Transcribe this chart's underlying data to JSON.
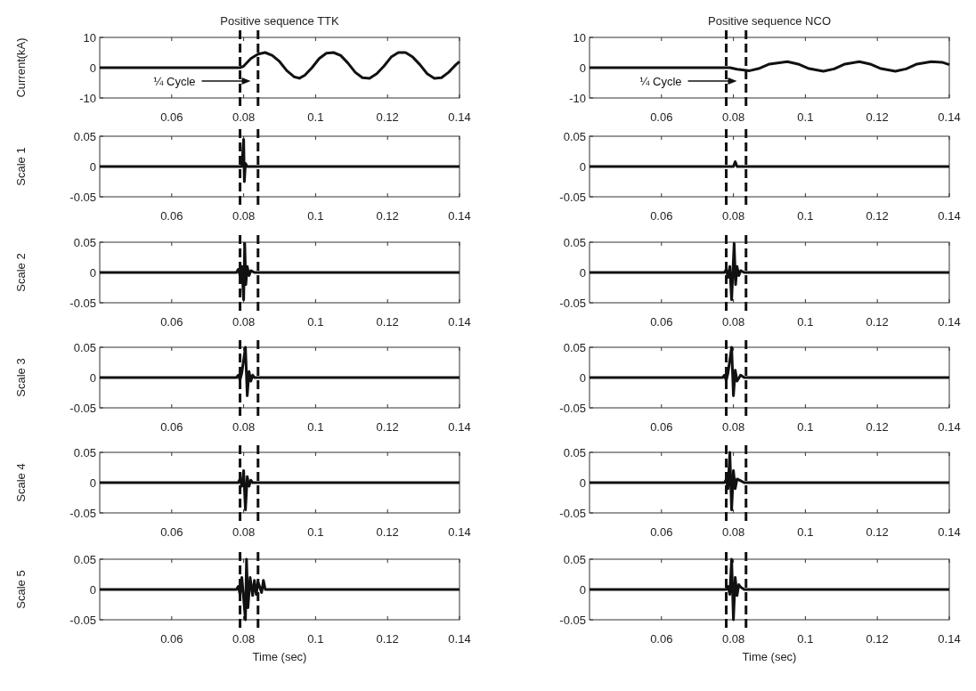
{
  "chart_data": [
    {
      "type": "line",
      "title": "Positive sequence TTK",
      "ylabel": "Current(kA)",
      "xlim": [
        0.04,
        0.14
      ],
      "ylim": [
        -10,
        10
      ],
      "xticks": [
        0.06,
        0.08,
        0.1,
        0.12,
        0.14
      ],
      "yticks": [
        -10,
        0,
        10
      ],
      "ref_lines": [
        {
          "axis": "x",
          "value": 0.079,
          "line_style": "dashed"
        },
        {
          "axis": "x",
          "value": 0.084,
          "line_style": "dashed"
        }
      ],
      "annotations": [
        "¼ Cycle"
      ],
      "series": [
        {
          "color": "#111111",
          "x": [
            0.04,
            0.079,
            0.08,
            0.082,
            0.084,
            0.086,
            0.088,
            0.09,
            0.092,
            0.094,
            0.0955,
            0.097,
            0.099,
            0.101,
            0.103,
            0.105,
            0.107,
            0.109,
            0.111,
            0.113,
            0.115,
            0.117,
            0.119,
            0.121,
            0.123,
            0.125,
            0.127,
            0.129,
            0.131,
            0.133,
            0.135,
            0.137,
            0.139,
            0.14
          ],
          "values": [
            0,
            0,
            0.5,
            3,
            4.5,
            5,
            4,
            2,
            -1,
            -3,
            -3.5,
            -2.5,
            0,
            3,
            4.8,
            5,
            4,
            1.5,
            -1.5,
            -3.3,
            -3.5,
            -2,
            0.5,
            3.5,
            5,
            5,
            3.5,
            1,
            -2,
            -3.5,
            -3.3,
            -1.5,
            1,
            2
          ]
        }
      ]
    },
    {
      "type": "line",
      "title": "Positive sequence NCO",
      "xlim": [
        0.04,
        0.14
      ],
      "ylim": [
        -10,
        10
      ],
      "xticks": [
        0.06,
        0.08,
        0.1,
        0.12,
        0.14
      ],
      "yticks": [
        -10,
        0,
        10
      ],
      "ref_lines": [
        {
          "axis": "x",
          "value": 0.078,
          "line_style": "dashed"
        },
        {
          "axis": "x",
          "value": 0.0835,
          "line_style": "dashed"
        }
      ],
      "annotations": [
        "¼ Cycle"
      ],
      "series": [
        {
          "color": "#111111",
          "x": [
            0.04,
            0.079,
            0.081,
            0.0845,
            0.087,
            0.09,
            0.095,
            0.098,
            0.101,
            0.105,
            0.108,
            0.111,
            0.115,
            0.118,
            0.121,
            0.125,
            0.128,
            0.131,
            0.135,
            0.138,
            0.14
          ],
          "values": [
            0,
            0,
            -0.5,
            -1,
            -0.3,
            1.2,
            2,
            1.2,
            -0.3,
            -1.2,
            -0.4,
            1.2,
            2,
            1.2,
            -0.3,
            -1.2,
            -0.4,
            1.2,
            2,
            1.8,
            1
          ]
        }
      ]
    },
    {
      "type": "line",
      "ylabel": "Scale 1",
      "xlim": [
        0.04,
        0.14
      ],
      "ylim": [
        -0.05,
        0.05
      ],
      "xticks": [
        0.06,
        0.08,
        0.1,
        0.12,
        0.14
      ],
      "yticks": [
        -0.05,
        0,
        0.05
      ],
      "ref_lines": [
        {
          "axis": "x",
          "value": 0.079,
          "line_style": "dashed"
        },
        {
          "axis": "x",
          "value": 0.084,
          "line_style": "dashed"
        }
      ],
      "series": [
        {
          "color": "#111111",
          "x": [
            0.04,
            0.0795,
            0.08,
            0.0802,
            0.0805,
            0.081,
            0.14
          ],
          "values": [
            0,
            0,
            0.045,
            -0.025,
            0.005,
            0,
            0
          ]
        }
      ]
    },
    {
      "type": "line",
      "xlim": [
        0.04,
        0.14
      ],
      "ylim": [
        -0.05,
        0.05
      ],
      "xticks": [
        0.06,
        0.08,
        0.1,
        0.12,
        0.14
      ],
      "yticks": [
        -0.05,
        0,
        0.05
      ],
      "ref_lines": [
        {
          "axis": "x",
          "value": 0.078,
          "line_style": "dashed"
        },
        {
          "axis": "x",
          "value": 0.0835,
          "line_style": "dashed"
        }
      ],
      "series": [
        {
          "color": "#111111",
          "x": [
            0.04,
            0.08,
            0.0805,
            0.081,
            0.14
          ],
          "values": [
            0,
            0,
            0.008,
            0,
            0
          ]
        }
      ]
    },
    {
      "type": "line",
      "ylabel": "Scale 2",
      "xlim": [
        0.04,
        0.14
      ],
      "ylim": [
        -0.05,
        0.05
      ],
      "xticks": [
        0.06,
        0.08,
        0.1,
        0.12,
        0.14
      ],
      "yticks": [
        -0.05,
        0,
        0.05
      ],
      "ref_lines": [
        {
          "axis": "x",
          "value": 0.079,
          "line_style": "dashed"
        },
        {
          "axis": "x",
          "value": 0.084,
          "line_style": "dashed"
        }
      ],
      "series": [
        {
          "color": "#111111",
          "x": [
            0.04,
            0.078,
            0.0785,
            0.079,
            0.0795,
            0.08,
            0.0803,
            0.0806,
            0.081,
            0.0815,
            0.082,
            0.083,
            0.14
          ],
          "values": [
            0,
            0,
            0.005,
            -0.005,
            0.01,
            -0.045,
            0.048,
            -0.02,
            0.01,
            -0.005,
            0.003,
            0,
            0
          ]
        }
      ]
    },
    {
      "type": "line",
      "xlim": [
        0.04,
        0.14
      ],
      "ylim": [
        -0.05,
        0.05
      ],
      "xticks": [
        0.06,
        0.08,
        0.1,
        0.12,
        0.14
      ],
      "yticks": [
        -0.05,
        0,
        0.05
      ],
      "ref_lines": [
        {
          "axis": "x",
          "value": 0.078,
          "line_style": "dashed"
        },
        {
          "axis": "x",
          "value": 0.0835,
          "line_style": "dashed"
        }
      ],
      "series": [
        {
          "color": "#111111",
          "x": [
            0.04,
            0.0775,
            0.078,
            0.0785,
            0.079,
            0.0795,
            0.0802,
            0.0806,
            0.081,
            0.0815,
            0.082,
            0.083,
            0.14
          ],
          "values": [
            0,
            0,
            0.005,
            -0.008,
            0.01,
            -0.045,
            0.048,
            -0.02,
            0.01,
            -0.005,
            0.003,
            0,
            0
          ]
        }
      ]
    },
    {
      "type": "line",
      "ylabel": "Scale 3",
      "xlim": [
        0.04,
        0.14
      ],
      "ylim": [
        -0.05,
        0.05
      ],
      "xticks": [
        0.06,
        0.08,
        0.1,
        0.12,
        0.14
      ],
      "yticks": [
        -0.05,
        0,
        0.05
      ],
      "ref_lines": [
        {
          "axis": "x",
          "value": 0.079,
          "line_style": "dashed"
        },
        {
          "axis": "x",
          "value": 0.084,
          "line_style": "dashed"
        }
      ],
      "series": [
        {
          "color": "#111111",
          "x": [
            0.04,
            0.078,
            0.0785,
            0.079,
            0.0795,
            0.0805,
            0.081,
            0.0815,
            0.082,
            0.0825,
            0.083,
            0.14
          ],
          "values": [
            0,
            0,
            0.004,
            -0.004,
            0.008,
            0.05,
            -0.03,
            0.01,
            -0.006,
            0.004,
            0,
            0
          ]
        }
      ]
    },
    {
      "type": "line",
      "xlim": [
        0.04,
        0.14
      ],
      "ylim": [
        -0.05,
        0.05
      ],
      "xticks": [
        0.06,
        0.08,
        0.1,
        0.12,
        0.14
      ],
      "yticks": [
        -0.05,
        0,
        0.05
      ],
      "ref_lines": [
        {
          "axis": "x",
          "value": 0.078,
          "line_style": "dashed"
        },
        {
          "axis": "x",
          "value": 0.0835,
          "line_style": "dashed"
        }
      ],
      "series": [
        {
          "color": "#111111",
          "x": [
            0.04,
            0.077,
            0.0775,
            0.078,
            0.0785,
            0.0795,
            0.08,
            0.0805,
            0.081,
            0.082,
            0.083,
            0.14
          ],
          "values": [
            0,
            0,
            0.004,
            -0.005,
            0.008,
            0.05,
            -0.03,
            0.012,
            -0.006,
            0.004,
            0,
            0
          ]
        }
      ]
    },
    {
      "type": "line",
      "ylabel": "Scale 4",
      "xlim": [
        0.04,
        0.14
      ],
      "ylim": [
        -0.05,
        0.05
      ],
      "xticks": [
        0.06,
        0.08,
        0.1,
        0.12,
        0.14
      ],
      "yticks": [
        -0.05,
        0,
        0.05
      ],
      "ref_lines": [
        {
          "axis": "x",
          "value": 0.079,
          "line_style": "dashed"
        },
        {
          "axis": "x",
          "value": 0.084,
          "line_style": "dashed"
        }
      ],
      "series": [
        {
          "color": "#111111",
          "x": [
            0.04,
            0.0785,
            0.079,
            0.0795,
            0.08,
            0.0805,
            0.081,
            0.0815,
            0.082,
            0.0825,
            0.14
          ],
          "values": [
            0,
            0,
            0.006,
            -0.006,
            0.02,
            -0.045,
            0.01,
            -0.006,
            0.004,
            0,
            0
          ]
        }
      ]
    },
    {
      "type": "line",
      "xlim": [
        0.04,
        0.14
      ],
      "ylim": [
        -0.05,
        0.05
      ],
      "xticks": [
        0.06,
        0.08,
        0.1,
        0.12,
        0.14
      ],
      "yticks": [
        -0.05,
        0,
        0.05
      ],
      "ref_lines": [
        {
          "axis": "x",
          "value": 0.078,
          "line_style": "dashed"
        },
        {
          "axis": "x",
          "value": 0.0835,
          "line_style": "dashed"
        }
      ],
      "series": [
        {
          "color": "#111111",
          "x": [
            0.04,
            0.0775,
            0.078,
            0.0785,
            0.079,
            0.0795,
            0.08,
            0.0805,
            0.081,
            0.082,
            0.083,
            0.14
          ],
          "values": [
            0,
            0,
            0.005,
            -0.01,
            0.05,
            -0.045,
            0.02,
            -0.01,
            0.006,
            0.003,
            0,
            0
          ]
        }
      ]
    },
    {
      "type": "line",
      "ylabel": "Scale 5",
      "xlabel": "Time (sec)",
      "xlim": [
        0.04,
        0.14
      ],
      "ylim": [
        -0.05,
        0.05
      ],
      "xticks": [
        0.06,
        0.08,
        0.1,
        0.12,
        0.14
      ],
      "yticks": [
        -0.05,
        0,
        0.05
      ],
      "ref_lines": [
        {
          "axis": "x",
          "value": 0.079,
          "line_style": "dashed"
        },
        {
          "axis": "x",
          "value": 0.084,
          "line_style": "dashed"
        }
      ],
      "series": [
        {
          "color": "#111111",
          "x": [
            0.04,
            0.078,
            0.0785,
            0.079,
            0.0795,
            0.0805,
            0.0808,
            0.0812,
            0.0818,
            0.0825,
            0.083,
            0.0835,
            0.084,
            0.085,
            0.0855,
            0.086,
            0.14
          ],
          "values": [
            0,
            0,
            0.005,
            -0.008,
            0.02,
            -0.05,
            0.05,
            -0.03,
            0.02,
            -0.01,
            0.015,
            -0.008,
            0.012,
            -0.005,
            0.015,
            0,
            0
          ]
        }
      ]
    },
    {
      "type": "line",
      "xlabel": "Time (sec)",
      "xlim": [
        0.04,
        0.14
      ],
      "ylim": [
        -0.05,
        0.05
      ],
      "xticks": [
        0.06,
        0.08,
        0.1,
        0.12,
        0.14
      ],
      "yticks": [
        -0.05,
        0,
        0.05
      ],
      "ref_lines": [
        {
          "axis": "x",
          "value": 0.078,
          "line_style": "dashed"
        },
        {
          "axis": "x",
          "value": 0.0835,
          "line_style": "dashed"
        }
      ],
      "series": [
        {
          "color": "#111111",
          "x": [
            0.04,
            0.078,
            0.0785,
            0.079,
            0.0795,
            0.08,
            0.0805,
            0.081,
            0.0815,
            0.082,
            0.083,
            0.14
          ],
          "values": [
            0,
            0,
            0.005,
            -0.008,
            0.05,
            -0.05,
            0.02,
            -0.01,
            0.008,
            0.004,
            0,
            0
          ]
        }
      ]
    }
  ]
}
